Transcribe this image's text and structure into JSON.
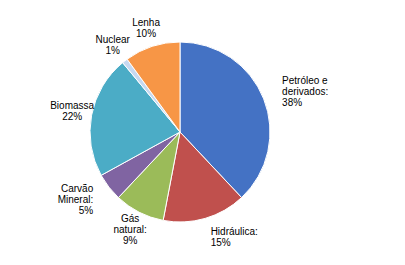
{
  "chart_data": {
    "type": "pie",
    "categories": [
      "Petróleo e\nderivados:\n38%",
      "Hidráulica:\n15%",
      "Gás\nnatural:\n9%",
      "Carvão\nMineral:\n5%",
      "Biomassa\n22%",
      "Nuclear\n1%",
      "Lenha\n10%"
    ],
    "values": [
      38,
      15,
      9,
      5,
      22,
      1,
      10
    ],
    "colors": [
      "#4472C4",
      "#C0504D",
      "#9BBB59",
      "#8064A2",
      "#4BACC6",
      "#C6D9F1",
      "#F79646"
    ]
  }
}
